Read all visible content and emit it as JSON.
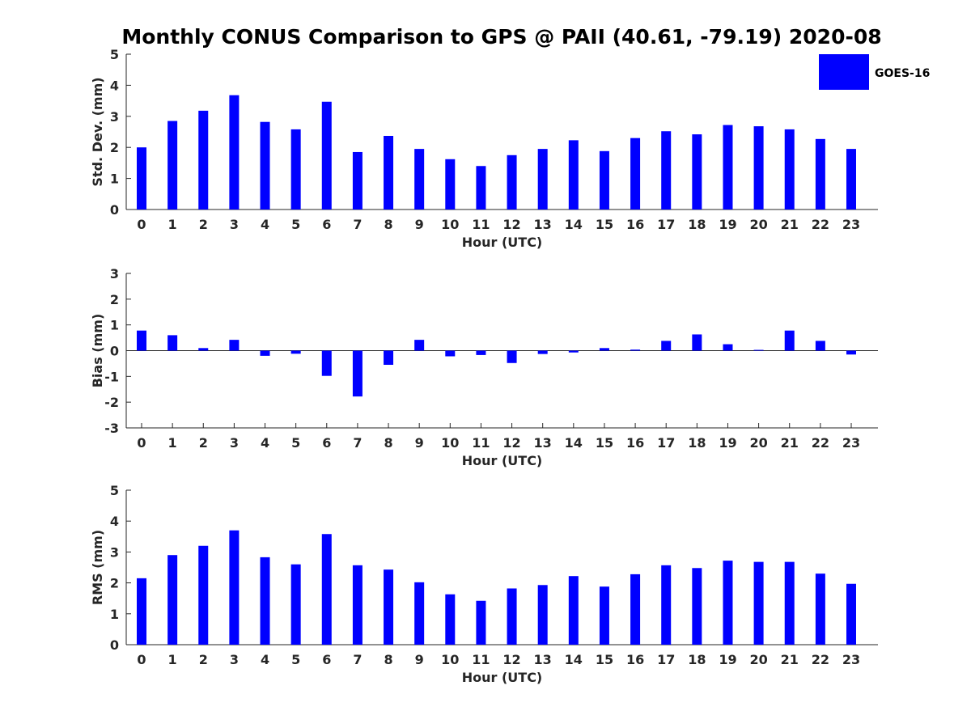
{
  "title": "Monthly CONUS Comparison to GPS @ PAII (40.61, -79.19) 2020-08",
  "legend": {
    "label": "GOES-16",
    "color": "#0000ff",
    "placement": "top-right"
  },
  "chart_data": [
    {
      "type": "bar",
      "xlabel": "Hour (UTC)",
      "ylabel": "Std. Dev. (mm)",
      "categories": [
        "0",
        "1",
        "2",
        "3",
        "4",
        "5",
        "6",
        "7",
        "8",
        "9",
        "10",
        "11",
        "12",
        "13",
        "14",
        "15",
        "16",
        "17",
        "18",
        "19",
        "20",
        "21",
        "22",
        "23"
      ],
      "series": [
        {
          "name": "GOES-16",
          "values": [
            2.0,
            2.85,
            3.18,
            3.68,
            2.82,
            2.58,
            3.47,
            1.85,
            2.37,
            1.95,
            1.62,
            1.4,
            1.75,
            1.95,
            2.23,
            1.88,
            2.3,
            2.52,
            2.42,
            2.72,
            2.68,
            2.58,
            2.27,
            1.95
          ]
        }
      ],
      "ylim": [
        0,
        5
      ],
      "yticks": [
        0,
        1,
        2,
        3,
        4,
        5
      ],
      "grid": false
    },
    {
      "type": "bar",
      "xlabel": "Hour (UTC)",
      "ylabel": "Bias (mm)",
      "categories": [
        "0",
        "1",
        "2",
        "3",
        "4",
        "5",
        "6",
        "7",
        "8",
        "9",
        "10",
        "11",
        "12",
        "13",
        "14",
        "15",
        "16",
        "17",
        "18",
        "19",
        "20",
        "21",
        "22",
        "23"
      ],
      "series": [
        {
          "name": "GOES-16",
          "values": [
            0.78,
            0.6,
            0.1,
            0.42,
            -0.2,
            -0.12,
            -0.98,
            -1.78,
            -0.55,
            0.42,
            -0.22,
            -0.17,
            -0.48,
            -0.13,
            -0.07,
            0.1,
            0.04,
            0.38,
            0.63,
            0.25,
            0.03,
            0.78,
            0.38,
            -0.15
          ]
        }
      ],
      "ylim": [
        -3,
        3
      ],
      "yticks": [
        -3,
        -2,
        -1,
        0,
        1,
        2,
        3
      ],
      "zero_line": true,
      "grid": false
    },
    {
      "type": "bar",
      "xlabel": "Hour (UTC)",
      "ylabel": "RMS (mm)",
      "categories": [
        "0",
        "1",
        "2",
        "3",
        "4",
        "5",
        "6",
        "7",
        "8",
        "9",
        "10",
        "11",
        "12",
        "13",
        "14",
        "15",
        "16",
        "17",
        "18",
        "19",
        "20",
        "21",
        "22",
        "23"
      ],
      "series": [
        {
          "name": "GOES-16",
          "values": [
            2.15,
            2.9,
            3.2,
            3.7,
            2.83,
            2.6,
            3.58,
            2.57,
            2.43,
            2.02,
            1.63,
            1.42,
            1.82,
            1.93,
            2.22,
            1.88,
            2.28,
            2.57,
            2.48,
            2.72,
            2.68,
            2.68,
            2.3,
            1.97
          ]
        }
      ],
      "ylim": [
        0,
        5
      ],
      "yticks": [
        0,
        1,
        2,
        3,
        4,
        5
      ],
      "grid": false
    }
  ]
}
